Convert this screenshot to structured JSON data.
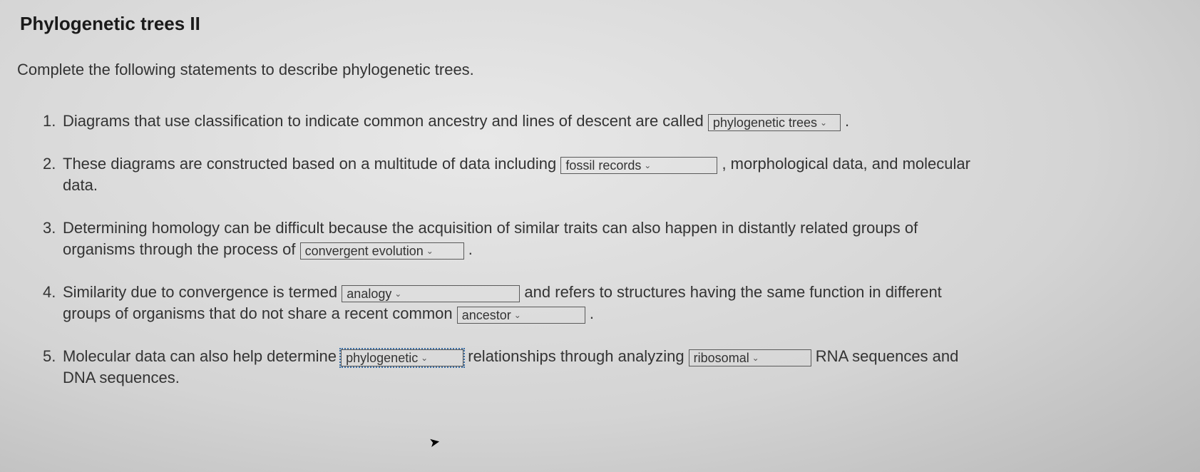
{
  "title": "Phylogenetic trees II",
  "instructions": "Complete the following statements to describe phylogenetic trees.",
  "statements": {
    "s1": {
      "pre": "Diagrams that use classification to indicate common ancestry and lines of descent are called ",
      "dropdown": "phylogenetic trees",
      "post": " ."
    },
    "s2": {
      "pre": "These diagrams are constructed based on a multitude of data including ",
      "dropdown": "fossil records",
      "post_a": " , morphological data, and molecular",
      "line2": "data."
    },
    "s3": {
      "pre": "Determining homology can be difficult because the acquisition of similar traits can also happen in distantly related groups of",
      "line2_pre": "organisms through the process of ",
      "dropdown": "convergent evolution",
      "post": " ."
    },
    "s4": {
      "pre": "Similarity due to convergence is termed  ",
      "dd1": "analogy",
      "mid": " and refers to structures having the same function in different",
      "line2_pre": "groups of organisms that do not share a recent common ",
      "dd2": "ancestor",
      "post": " ."
    },
    "s5": {
      "pre": "Molecular data can also help determine  ",
      "dd1": "phylogenetic",
      "mid": " relationships through analyzing  ",
      "dd2": "ribosomal",
      "post": " RNA sequences and",
      "line2": "DNA sequences."
    }
  }
}
